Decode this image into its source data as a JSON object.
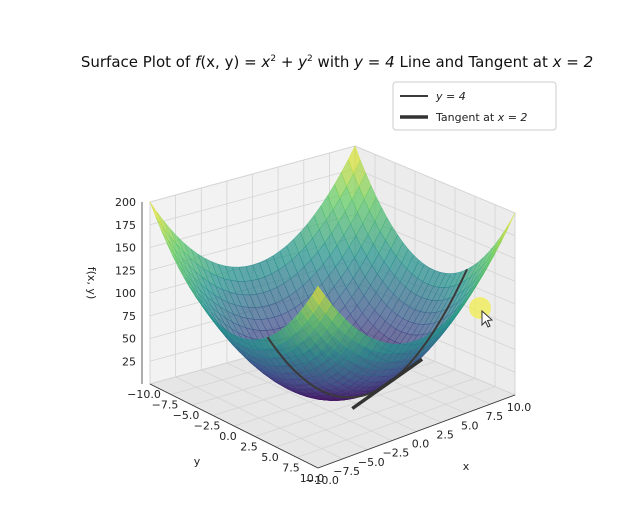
{
  "chart_data": {
    "type": "surface3d",
    "function": "f(x, y) = x^2 + y^2",
    "title_parts": {
      "prefix": "Surface Plot of ",
      "fx": "f",
      "fargs": "(x, y) = ",
      "x": "x",
      "sq": "2",
      "plus": " + ",
      "y": "y",
      "suffix1": " with ",
      "yeq": "y = 4",
      "suffix2": " Line and Tangent at ",
      "xeq": "x = 2"
    },
    "xlabel": "x",
    "ylabel": "y",
    "zlabel": "f(x, y)",
    "xlim": [
      -10,
      10
    ],
    "ylim": [
      -10,
      10
    ],
    "zlim": [
      0,
      200
    ],
    "x_ticks": [
      "10.0",
      "7.5",
      "5.0",
      "2.5",
      "0.0",
      "−2.5",
      "−5.0",
      "−7.5",
      "−10.0"
    ],
    "x_tick_values": [
      10,
      7.5,
      5,
      2.5,
      0,
      -2.5,
      -5,
      -7.5,
      -10
    ],
    "y_ticks": [
      "−10.0",
      "−7.5",
      "−5.0",
      "−2.5",
      "0.0",
      "2.5",
      "5.0",
      "7.5",
      "10.0"
    ],
    "y_tick_values": [
      -10,
      -7.5,
      -5,
      -2.5,
      0,
      2.5,
      5,
      7.5,
      10
    ],
    "z_ticks": [
      "25",
      "50",
      "75",
      "100",
      "125",
      "150",
      "175",
      "200"
    ],
    "z_tick_values": [
      25,
      50,
      75,
      100,
      125,
      150,
      175,
      200
    ],
    "colormap": [
      "#440154",
      "#3b528b",
      "#21918c",
      "#5ec962",
      "#fde725"
    ],
    "series": [
      {
        "name": "y = 4",
        "kind": "line",
        "fixed_y": 4,
        "x_range": [
          -10,
          10
        ],
        "color": "#3a3a3a"
      },
      {
        "name": "Tangent at x = 2",
        "kind": "tangent",
        "point": [
          2,
          4,
          20
        ],
        "slope": 4,
        "x_range": [
          -1.5,
          5.5
        ],
        "color": "#333333"
      }
    ],
    "legend": {
      "position": "top-right",
      "entries": [
        {
          "label_prefix": "y = 4",
          "label_suffix": ""
        },
        {
          "label_prefix": "Tangent at ",
          "label_suffix": "x = 2"
        }
      ]
    },
    "grid": true
  }
}
